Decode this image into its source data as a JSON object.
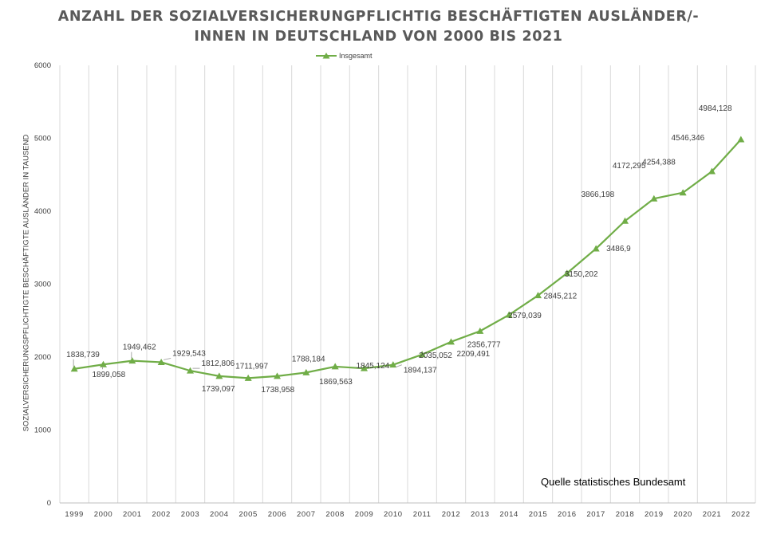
{
  "chart_data": {
    "type": "line",
    "title_line_1": "ANZAHL DER SOZIALVERSICHERUNGPFLICHTIG BESCHÄFTIGTEN AUSLÄNDER/-",
    "title_line_2": "INNEN IN DEUTSCHLAND VON 2000 BIS 2021",
    "xlabel": "",
    "ylabel": "SOZIALVERSICHERUNGSPFLICHTIGTE BESCHÄFTIGTE AUSLÄNDER IN TAUSEND",
    "ylim": [
      0,
      6000
    ],
    "y_ticks": [
      "0",
      "1000",
      "2000",
      "3000",
      "4000",
      "5000",
      "6000"
    ],
    "categories": [
      "1999",
      "2000",
      "2001",
      "2002",
      "2003",
      "2004",
      "2005",
      "2006",
      "2007",
      "2008",
      "2009",
      "2010",
      "2011",
      "2012",
      "2013",
      "2014",
      "2015",
      "2016",
      "2017",
      "2018",
      "2019",
      "2020",
      "2021",
      "2022"
    ],
    "series": [
      {
        "name": "Insgesamt",
        "color": "#70AD47",
        "marker": "triangle",
        "values": [
          1838.739,
          1899.058,
          1949.462,
          1929.543,
          1812.806,
          1739.097,
          1711.997,
          1738.958,
          1788.184,
          1869.563,
          1845.124,
          1894.137,
          2035.052,
          2209.491,
          2356.777,
          2579.039,
          2845.212,
          3150.202,
          3486.9,
          3866.198,
          4172.295,
          4254.388,
          4546.346,
          4984.128
        ],
        "labels": [
          "1838,739",
          "1899,058",
          "1949,462",
          "1929,543",
          "1812,806",
          "1739,097",
          "1711,997",
          "1738,958",
          "1788,184",
          "1869,563",
          "1845,124",
          "1894,137",
          "2035,052",
          "2209,491",
          "2356,777",
          "2579,039",
          "2845,212",
          "3150,202",
          "3486,9",
          "3866,198",
          "4172,295",
          "4254,388",
          "4546,346",
          "4984,128"
        ]
      }
    ],
    "grid": {
      "horizontal": false,
      "vertical": true
    },
    "legend_position": "top-center",
    "annotation": "Quelle statistisches Bundesamt"
  }
}
